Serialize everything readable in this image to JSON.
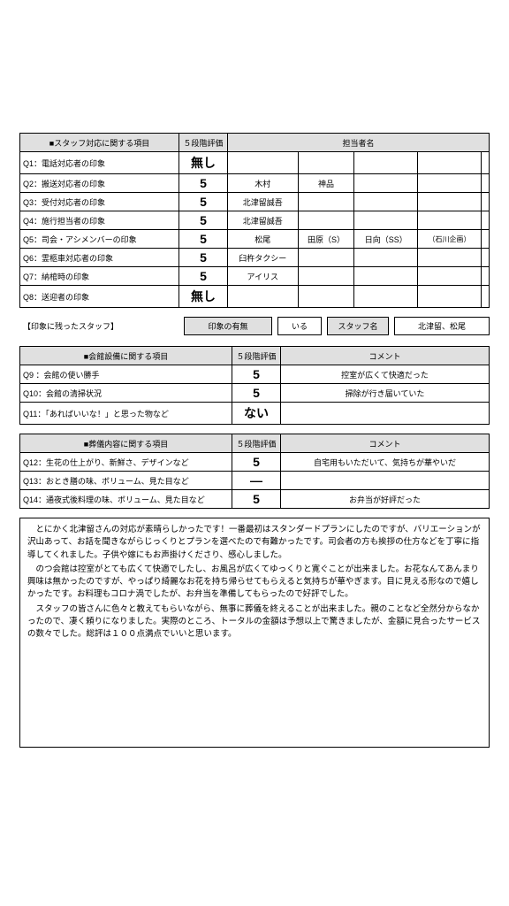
{
  "section1": {
    "title": "■スタッフ対応に関する項目",
    "ratingHeader": "５段階評価",
    "personHeader": "担当者名",
    "rows": [
      {
        "q": "Q1：電話対応者の印象",
        "rating": "無し",
        "cells": [
          "",
          "",
          "",
          "",
          ""
        ]
      },
      {
        "q": "Q2：搬送対応者の印象",
        "rating": "5",
        "cells": [
          "木村",
          "神品",
          "",
          "",
          ""
        ]
      },
      {
        "q": "Q3：受付対応者の印象",
        "rating": "5",
        "cells": [
          "北津留誠吾",
          "",
          "",
          "",
          ""
        ]
      },
      {
        "q": "Q4：施行担当者の印象",
        "rating": "5",
        "cells": [
          "北津留誠吾",
          "",
          "",
          "",
          ""
        ]
      },
      {
        "q": "Q5：司会・アシメンバーの印象",
        "rating": "5",
        "cells": [
          "松尾",
          "田原（S）",
          "日向（SS）",
          "（石川企画）",
          ""
        ]
      },
      {
        "q": "Q6：霊柩車対応者の印象",
        "rating": "5",
        "cells": [
          "臼杵タクシー",
          "",
          "",
          "",
          ""
        ]
      },
      {
        "q": "Q7：納棺時の印象",
        "rating": "5",
        "cells": [
          "アイリス",
          "",
          "",
          "",
          ""
        ]
      },
      {
        "q": "Q8：送迎者の印象",
        "rating": "無し",
        "cells": [
          "",
          "",
          "",
          "",
          ""
        ]
      }
    ]
  },
  "staffImpression": {
    "label": "【印象に残ったスタッフ】",
    "col1": "印象の有無",
    "val1": "いる",
    "col2": "スタッフ名",
    "val2": "北津留、松尾"
  },
  "section2": {
    "title": "■会館設備に関する項目",
    "ratingHeader": "５段階評価",
    "commentHeader": "コメント",
    "rows": [
      {
        "q": "Q9 ：会館の使い勝手",
        "rating": "5",
        "comment": "控室が広くて快適だった"
      },
      {
        "q": "Q10：会館の清掃状況",
        "rating": "5",
        "comment": "掃除が行き届いていた"
      },
      {
        "q": "Q11：「あればいいな！」と思った物など",
        "rating": "ない",
        "comment": ""
      }
    ]
  },
  "section3": {
    "title": "■葬儀内容に関する項目",
    "ratingHeader": "５段階評価",
    "commentHeader": "コメント",
    "rows": [
      {
        "q": "Q12：生花の仕上がり、新鮮さ、デザインなど",
        "rating": "5",
        "comment": "自宅用もいただいて、気持ちが華やいだ"
      },
      {
        "q": "Q13：おとき膳の味、ボリューム、見た目など",
        "rating": "—",
        "comment": ""
      },
      {
        "q": "Q14：通夜式後料理の味、ボリューム、見た目など",
        "rating": "5",
        "comment": "お弁当が好評だった"
      }
    ]
  },
  "freeComment": {
    "p1": "とにかく北津留さんの対応が素晴らしかったです！一番最初はスタンダードプランにしたのですが、バリエーションが沢山あって、お話を聞きながらじっくりとプランを選べたので有難かったです。司会者の方も挨拶の仕方などを丁寧に指導してくれました。子供や嫁にもお声掛けくださり、感心しました。",
    "p2": "のつ会館は控室がとても広くて快適でしたし、お風呂が広くてゆっくりと寛ぐことが出来ました。お花なんてあんまり興味は無かったのですが、やっぱり綺麗なお花を持ち帰らせてもらえると気持ちが華やぎます。目に見える形なので嬉しかったです。お料理もコロナ渦でしたが、お弁当を準備してもらったので好評でした。",
    "p3": "スタッフの皆さんに色々と教えてもらいながら、無事に葬儀を終えることが出来ました。親のことなど全然分からなかったので、凄く頼りになりました。実際のところ、トータルの金額は予想以上で驚きましたが、金額に見合ったサービスの数々でした。総評は１００点満点でいいと思います。"
  }
}
